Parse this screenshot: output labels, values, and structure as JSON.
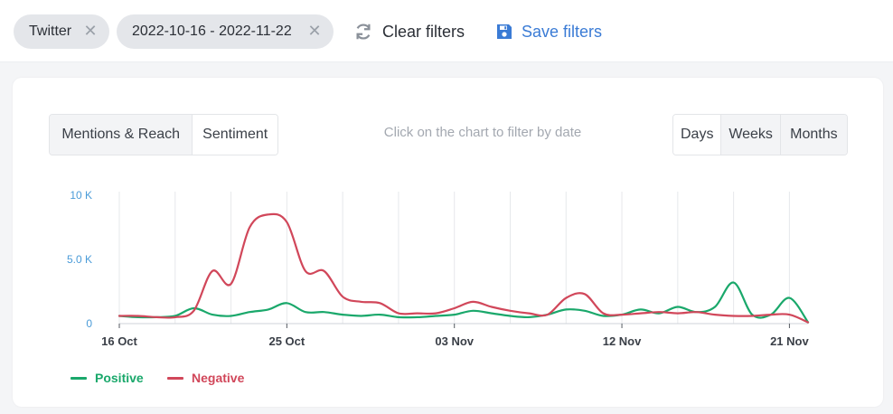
{
  "filters": {
    "chips": [
      {
        "label": "Twitter"
      },
      {
        "label": "2022-10-16 - 2022-11-22"
      }
    ],
    "clear_label": "Clear filters",
    "save_label": "Save filters",
    "remove_icon": "close-icon",
    "clear_icon": "refresh-icon",
    "save_icon": "floppy-disk-icon"
  },
  "panel": {
    "view_tabs": [
      "Mentions & Reach",
      "Sentiment"
    ],
    "active_view": "Sentiment",
    "hint": "Click on the chart to filter by date",
    "period_tabs": [
      "Days",
      "Weeks",
      "Months"
    ],
    "active_period": "Days"
  },
  "chart_data": {
    "type": "line",
    "x_start": "2022-10-16",
    "x": [
      "2022-10-16",
      "2022-10-17",
      "2022-10-18",
      "2022-10-19",
      "2022-10-20",
      "2022-10-21",
      "2022-10-22",
      "2022-10-23",
      "2022-10-24",
      "2022-10-25",
      "2022-10-26",
      "2022-10-27",
      "2022-10-28",
      "2022-10-29",
      "2022-10-30",
      "2022-10-31",
      "2022-11-01",
      "2022-11-02",
      "2022-11-03",
      "2022-11-04",
      "2022-11-05",
      "2022-11-06",
      "2022-11-07",
      "2022-11-08",
      "2022-11-09",
      "2022-11-10",
      "2022-11-11",
      "2022-11-12",
      "2022-11-13",
      "2022-11-14",
      "2022-11-15",
      "2022-11-16",
      "2022-11-17",
      "2022-11-18",
      "2022-11-19",
      "2022-11-20",
      "2022-11-21",
      "2022-11-22"
    ],
    "xtick_labels": [
      {
        "date": "2022-10-16",
        "label": "16 Oct"
      },
      {
        "date": "2022-10-25",
        "label": "25 Oct"
      },
      {
        "date": "2022-11-03",
        "label": "03 Nov"
      },
      {
        "date": "2022-11-12",
        "label": "12 Nov"
      },
      {
        "date": "2022-11-21",
        "label": "21 Nov"
      }
    ],
    "ytick_labels": [
      {
        "value": 0,
        "label": "0"
      },
      {
        "value": 5000,
        "label": "5.0 K"
      },
      {
        "value": 10000,
        "label": "10 K"
      }
    ],
    "ylim": [
      0,
      10000
    ],
    "series": [
      {
        "name": "Positive",
        "color": "#1aa86b",
        "values": [
          600,
          500,
          500,
          600,
          1200,
          700,
          600,
          900,
          1100,
          1600,
          900,
          900,
          700,
          600,
          700,
          500,
          500,
          600,
          700,
          1000,
          800,
          600,
          500,
          700,
          1100,
          1000,
          600,
          700,
          1100,
          800,
          1300,
          900,
          1300,
          3200,
          700,
          700,
          2000,
          100
        ]
      },
      {
        "name": "Negative",
        "color": "#d1475a",
        "values": [
          600,
          600,
          500,
          500,
          1000,
          4100,
          3100,
          7500,
          8500,
          7900,
          4100,
          4100,
          2100,
          1700,
          1600,
          800,
          800,
          800,
          1200,
          1700,
          1300,
          1000,
          800,
          700,
          2000,
          2300,
          800,
          700,
          800,
          900,
          800,
          900,
          700,
          600,
          600,
          700,
          700,
          100
        ]
      }
    ],
    "grid": "vertical",
    "legend_position": "bottom-left"
  }
}
